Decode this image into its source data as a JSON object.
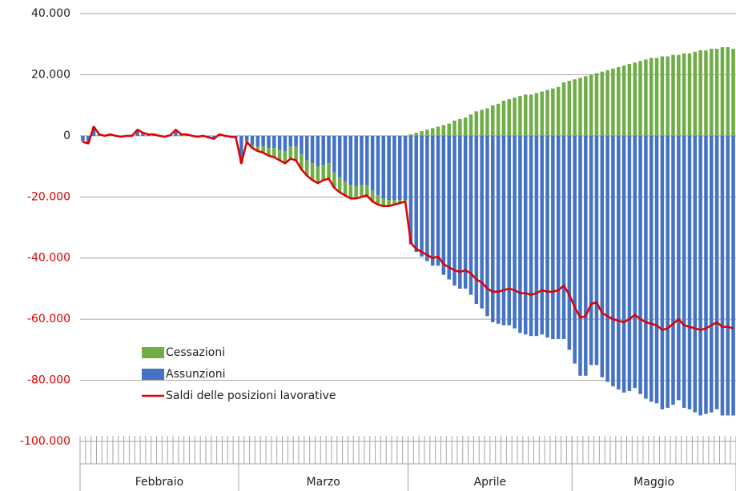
{
  "chart_data": {
    "type": "bar",
    "categories": [
      "Febbraio",
      "Febbraio",
      "Febbraio",
      "Febbraio",
      "Febbraio",
      "Febbraio",
      "Febbraio",
      "Febbraio",
      "Febbraio",
      "Febbraio",
      "Febbraio",
      "Febbraio",
      "Febbraio",
      "Febbraio",
      "Febbraio",
      "Febbraio",
      "Febbraio",
      "Febbraio",
      "Febbraio",
      "Febbraio",
      "Febbraio",
      "Febbraio",
      "Febbraio",
      "Febbraio",
      "Febbraio",
      "Febbraio",
      "Febbraio",
      "Febbraio",
      "Febbraio",
      "Marzo",
      "Marzo",
      "Marzo",
      "Marzo",
      "Marzo",
      "Marzo",
      "Marzo",
      "Marzo",
      "Marzo",
      "Marzo",
      "Marzo",
      "Marzo",
      "Marzo",
      "Marzo",
      "Marzo",
      "Marzo",
      "Marzo",
      "Marzo",
      "Marzo",
      "Marzo",
      "Marzo",
      "Marzo",
      "Marzo",
      "Marzo",
      "Marzo",
      "Marzo",
      "Marzo",
      "Marzo",
      "Marzo",
      "Marzo",
      "Marzo",
      "Aprile",
      "Aprile",
      "Aprile",
      "Aprile",
      "Aprile",
      "Aprile",
      "Aprile",
      "Aprile",
      "Aprile",
      "Aprile",
      "Aprile",
      "Aprile",
      "Aprile",
      "Aprile",
      "Aprile",
      "Aprile",
      "Aprile",
      "Aprile",
      "Aprile",
      "Aprile",
      "Aprile",
      "Aprile",
      "Aprile",
      "Aprile",
      "Aprile",
      "Aprile",
      "Aprile",
      "Aprile",
      "Aprile",
      "Aprile",
      "Maggio",
      "Maggio",
      "Maggio",
      "Maggio",
      "Maggio",
      "Maggio",
      "Maggio",
      "Maggio",
      "Maggio",
      "Maggio",
      "Maggio",
      "Maggio",
      "Maggio",
      "Maggio",
      "Maggio",
      "Maggio",
      "Maggio",
      "Maggio",
      "Maggio",
      "Maggio",
      "Maggio",
      "Maggio",
      "Maggio",
      "Maggio",
      "Maggio",
      "Maggio",
      "Maggio",
      "Maggio",
      "Maggio",
      "Maggio"
    ],
    "series": [
      {
        "name": "Cessazioni",
        "type": "bar",
        "color": "#70ad47",
        "values": [
          -300,
          -200,
          400,
          100,
          0,
          100,
          0,
          -100,
          0,
          0,
          300,
          100,
          100,
          100,
          0,
          -100,
          0,
          300,
          100,
          100,
          0,
          -100,
          0,
          -100,
          -200,
          100,
          0,
          0,
          0,
          -500,
          -500,
          -1000,
          -1500,
          -2000,
          -2500,
          -3000,
          -3500,
          -4000,
          -4000,
          -4500,
          -5000,
          -5000,
          -5500,
          -5500,
          -5000,
          -5000,
          -5000,
          -5000,
          -4500,
          -4500,
          -4000,
          -4000,
          -3500,
          -3500,
          -3000,
          -2500,
          -2000,
          -1500,
          -1000,
          -500,
          500,
          1000,
          1500,
          2000,
          2500,
          3000,
          3500,
          4000,
          5000,
          5500,
          6000,
          7000,
          8000,
          8500,
          9000,
          10000,
          10500,
          11500,
          12000,
          12500,
          13000,
          13500,
          13500,
          14000,
          14500,
          15000,
          15500,
          16000,
          17500,
          18000,
          18500,
          19000,
          19500,
          20000,
          20500,
          21000,
          21500,
          22000,
          22500,
          23000,
          23500,
          24000,
          24500,
          25000,
          25500,
          25500,
          26000,
          26000,
          26500,
          26500,
          27000,
          27000,
          27500,
          28000,
          28000,
          28500,
          28500,
          29000,
          29000,
          28500
        ]
      },
      {
        "name": "Assunzioni",
        "type": "bar",
        "color": "#4472c4",
        "values": [
          -1700,
          -2300,
          2600,
          400,
          0,
          400,
          0,
          -200,
          0,
          0,
          1700,
          900,
          400,
          400,
          0,
          -200,
          200,
          1700,
          400,
          400,
          0,
          -200,
          0,
          -400,
          -800,
          400,
          0,
          -300,
          -500,
          -8500,
          -1500,
          -3000,
          -3500,
          -3500,
          -4000,
          -4000,
          -4500,
          -5000,
          -3500,
          -3500,
          -6000,
          -8000,
          -9000,
          -10000,
          -9500,
          -9000,
          -12000,
          -13500,
          -15000,
          -16000,
          -16500,
          -16000,
          -16000,
          -18000,
          -19500,
          -20500,
          -21000,
          -21000,
          -21000,
          -21000,
          -35500,
          -38000,
          -39500,
          -41000,
          -42500,
          -42500,
          -45500,
          -47000,
          -49000,
          -50000,
          -50000,
          -52000,
          -55000,
          -56500,
          -59000,
          -61000,
          -61500,
          -62000,
          -62000,
          -63000,
          -64500,
          -65000,
          -65500,
          -65500,
          -65000,
          -66000,
          -66500,
          -66500,
          -66500,
          -70000,
          -74500,
          -78500,
          -78500,
          -75000,
          -75000,
          -79000,
          -80500,
          -82000,
          -83000,
          -84000,
          -83500,
          -82500,
          -84500,
          -86000,
          -87000,
          -87500,
          -89500,
          -89000,
          -88000,
          -86500,
          -89000,
          -89500,
          -90500,
          -91500,
          -91000,
          -90500,
          -89500,
          -91500,
          -91500,
          -91500
        ]
      },
      {
        "name": "Saldi delle posizioni lavorative",
        "type": "line",
        "color": "#e00000",
        "values": [
          -2000,
          -2500,
          3000,
          500,
          0,
          500,
          0,
          -300,
          0,
          0,
          2000,
          1000,
          500,
          500,
          0,
          -300,
          200,
          2000,
          500,
          500,
          0,
          -300,
          0,
          -500,
          -1000,
          500,
          0,
          -300,
          -500,
          -9000,
          -2000,
          -4000,
          -5000,
          -5500,
          -6500,
          -7000,
          -8000,
          -9000,
          -7500,
          -8000,
          -11000,
          -13000,
          -14500,
          -15500,
          -14500,
          -14000,
          -17000,
          -18500,
          -19500,
          -20500,
          -20500,
          -20000,
          -19500,
          -21500,
          -22500,
          -23000,
          -23000,
          -22500,
          -22000,
          -21500,
          -35000,
          -37000,
          -38000,
          -39000,
          -40000,
          -39500,
          -42000,
          -43000,
          -44000,
          -44500,
          -44000,
          -45000,
          -47000,
          -48000,
          -50000,
          -51000,
          -51000,
          -50500,
          -50000,
          -50500,
          -51500,
          -51500,
          -52000,
          -51500,
          -50500,
          -51000,
          -51000,
          -50500,
          -49000,
          -52000,
          -56000,
          -59500,
          -59000,
          -55000,
          -54500,
          -58000,
          -59000,
          -60000,
          -60500,
          -61000,
          -60000,
          -58500,
          -60000,
          -61000,
          -61500,
          -62000,
          -63500,
          -63000,
          -61500,
          -60000,
          -62000,
          -62500,
          -63000,
          -63500,
          -63000,
          -62000,
          -61000,
          -62500,
          -62500,
          -63000
        ]
      }
    ],
    "ylim": [
      -100000,
      40000
    ],
    "yticks": [
      {
        "value": -100000,
        "label": "-100.000"
      },
      {
        "value": -80000,
        "label": "-80.000"
      },
      {
        "value": -60000,
        "label": "-60.000"
      },
      {
        "value": -40000,
        "label": "-40.000"
      },
      {
        "value": -20000,
        "label": "-20.000"
      },
      0,
      {
        "value": 20000,
        "label": "20.000"
      },
      {
        "value": 40000,
        "label": "40.000"
      }
    ],
    "negative_tick_color": "#e00000",
    "grid": true,
    "legend": "lower left"
  }
}
